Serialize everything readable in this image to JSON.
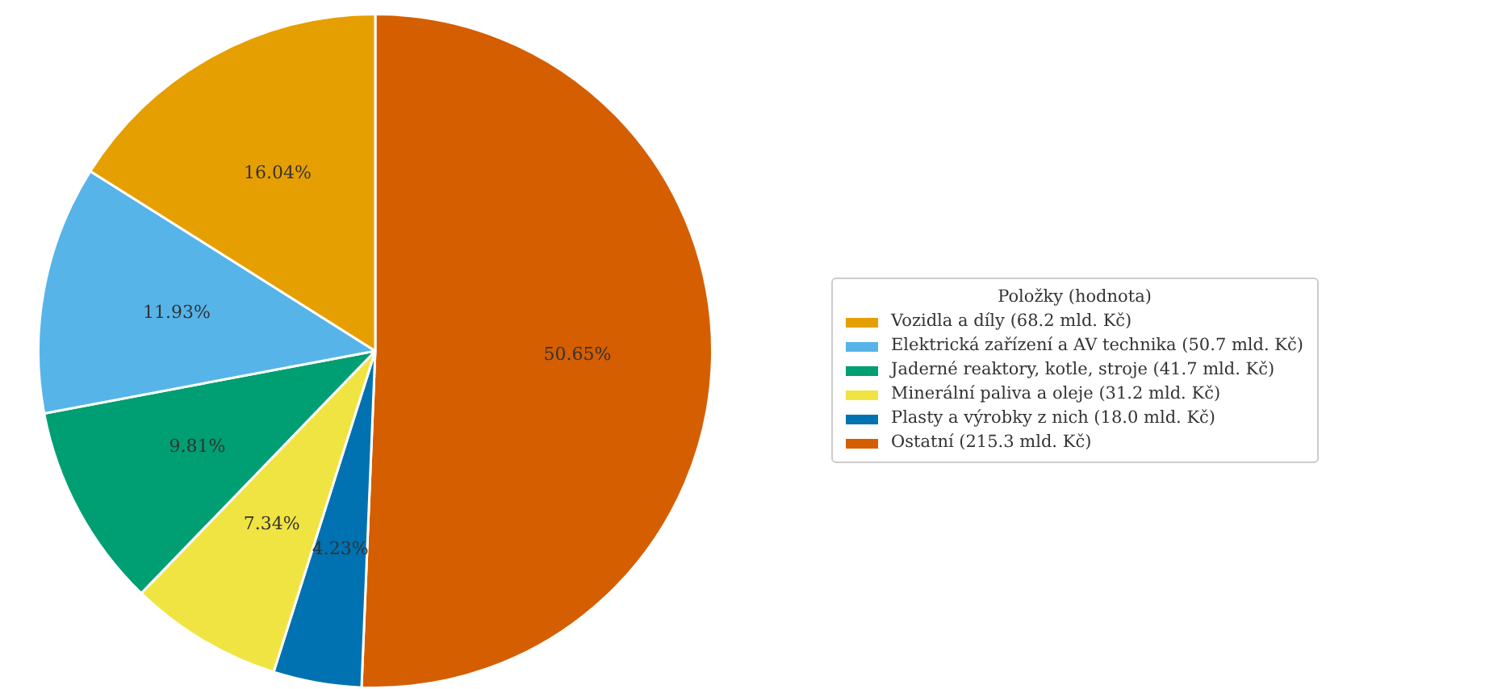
{
  "chart_data": {
    "type": "pie",
    "legend_title": "Položky (hodnota)",
    "categories": [
      "Vozidla a díly (68.2 mld. Kč)",
      "Elektrická zařízení a AV technika (50.7 mld. Kč)",
      "Jaderné reaktory, kotle, stroje (41.7 mld. Kč)",
      "Minerální paliva a oleje (31.2 mld. Kč)",
      "Plasty a výrobky z nich (18.0 mld. Kč)",
      "Ostatní (215.3 mld. Kč)"
    ],
    "values": [
      16.04,
      11.93,
      9.81,
      7.34,
      4.23,
      50.65
    ],
    "colors": [
      "#e69f00",
      "#56b4e9",
      "#009e73",
      "#f0e442",
      "#0072b2",
      "#d55e00"
    ],
    "value_labels": [
      "16.04%",
      "11.93%",
      "9.81%",
      "7.34%",
      "4.23%",
      "50.65%"
    ],
    "legend": "right"
  }
}
